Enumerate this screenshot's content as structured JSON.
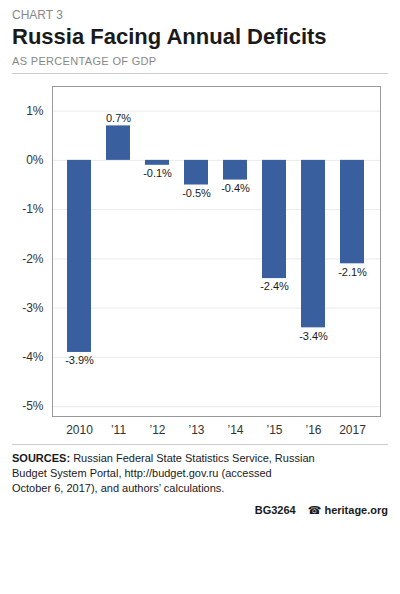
{
  "chart_data": {
    "type": "bar",
    "title": "Russia Facing Annual Deficits",
    "subtitle": "AS PERCENTAGE OF GDP",
    "annotations": [
      "CHART 3",
      "SOURCES:",
      "Russian Federal State Statistics Service, Russian\nBudget System Portal, http://budget.gov.ru (accessed\nOctober 6, 2017), and authors’ calculations.",
      "BG3264",
      "☎  heritage.org"
    ],
    "categories": [
      "2010",
      "’11",
      "’12",
      "’13",
      "’14",
      "’15",
      "’16",
      "2017"
    ],
    "values": [
      -3.9,
      0.7,
      -0.1,
      -0.5,
      -0.4,
      -2.4,
      -3.4,
      -2.1
    ],
    "value_labels": [
      "-3.9%",
      "0.7%",
      "-0.1%",
      "-0.5%",
      "-0.4%",
      "-2.4%",
      "-3.4%",
      "-2.1%"
    ],
    "data_labels": true,
    "color": "#3A5F9F",
    "ylim": [
      -5.2,
      1.5
    ],
    "yticks": [
      {
        "value": 1,
        "label": "1%"
      },
      {
        "value": 0,
        "label": "0%"
      },
      {
        "value": -1,
        "label": "-1%"
      },
      {
        "value": -2,
        "label": "-2%"
      },
      {
        "value": -3,
        "label": "-3%"
      },
      {
        "value": -4,
        "label": "-4%"
      },
      {
        "value": -5,
        "label": "-5%"
      }
    ],
    "grid": true
  }
}
